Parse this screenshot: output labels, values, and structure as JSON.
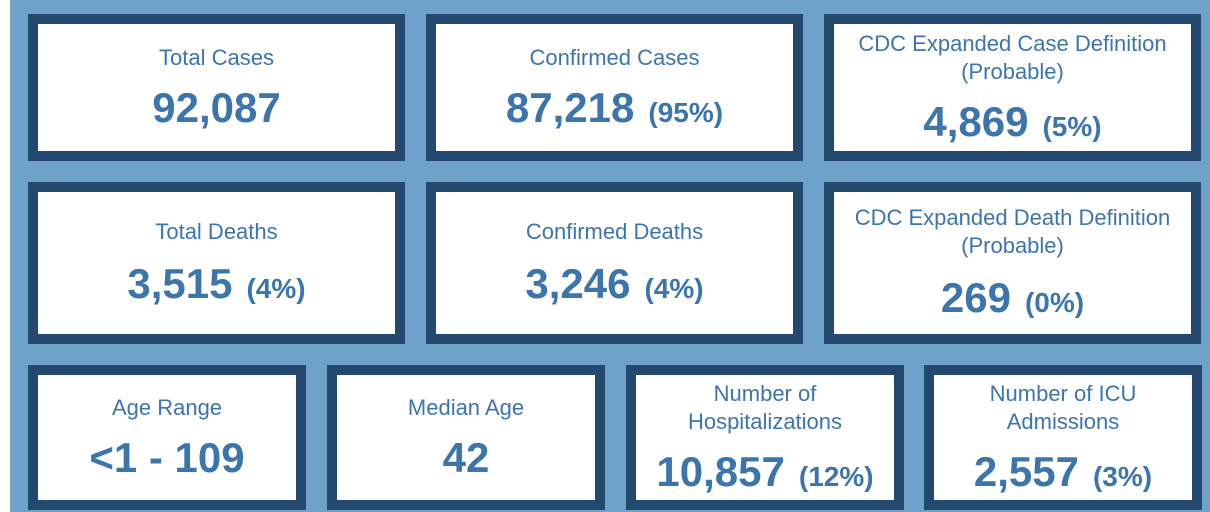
{
  "colors": {
    "background": "#6ea2c8",
    "card_border": "#23496f",
    "card_fill": "#ffffff",
    "text": "#3c75ac"
  },
  "cards": {
    "total_cases": {
      "title": "Total Cases",
      "value": "92,087",
      "pct": ""
    },
    "confirmed_cases": {
      "title": "Confirmed Cases",
      "value": "87,218",
      "pct": "(95%)"
    },
    "probable_cases": {
      "title_line1": "CDC Expanded Case Definition",
      "title_line2": "(Probable)",
      "value": "4,869",
      "pct": "(5%)"
    },
    "total_deaths": {
      "title": "Total Deaths",
      "value": "3,515",
      "pct": "(4%)"
    },
    "confirmed_deaths": {
      "title": "Confirmed Deaths",
      "value": "3,246",
      "pct": "(4%)"
    },
    "probable_deaths": {
      "title_line1": "CDC Expanded Death Definition",
      "title_line2": "(Probable)",
      "value": "269",
      "pct": "(0%)"
    },
    "age_range": {
      "title": "Age Range",
      "value": "<1 - 109"
    },
    "median_age": {
      "title": "Median Age",
      "value": "42"
    },
    "hospitalizations": {
      "title_line1": "Number of",
      "title_line2": "Hospitalizations",
      "value": "10,857",
      "pct": "(12%)"
    },
    "icu_admissions": {
      "title_line1": "Number of ICU",
      "title_line2": "Admissions",
      "value": "2,557",
      "pct": "(3%)"
    }
  }
}
